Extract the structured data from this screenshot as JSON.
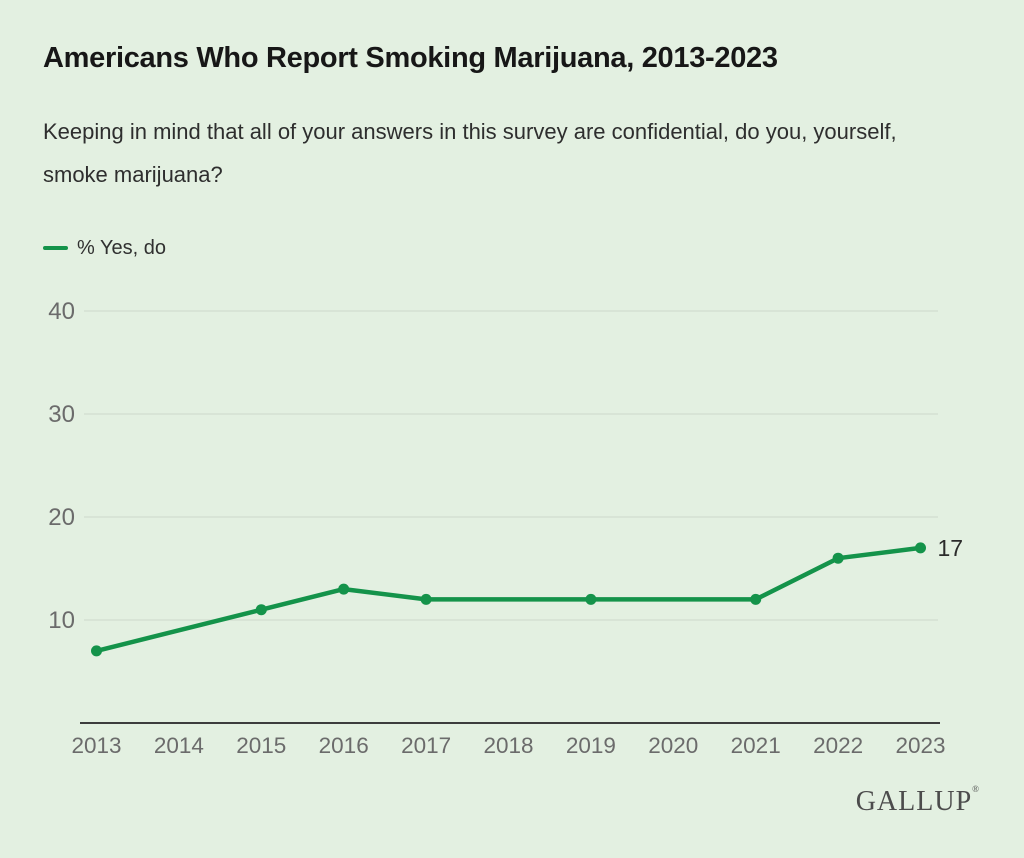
{
  "header": {
    "title": "Americans Who Report Smoking Marijuana, 2013-2023",
    "subtitle": "Keeping in mind that all of your answers in this survey are confidential, do you, yourself, smoke marijuana?"
  },
  "legend": {
    "series_label": "% Yes, do"
  },
  "footer": {
    "logo_text": "GALLUP",
    "registered_mark": "®"
  },
  "colors": {
    "background": "#e3f0e1",
    "line": "#14934a",
    "grid": "#d4dfd2",
    "axis": "#3d3d3d",
    "title_text": "#171717",
    "body_text": "#2e2e2e",
    "muted_text": "#6b6b6b",
    "end_label_text": "#2b2b2b"
  },
  "chart_data": {
    "type": "line",
    "title": "Americans Who Report Smoking Marijuana, 2013-2023",
    "question": "Keeping in mind that all of your answers in this survey are confidential, do you, yourself, smoke marijuana?",
    "xlabel": "",
    "ylabel": "% Yes, do",
    "categories": [
      2013,
      2014,
      2015,
      2016,
      2017,
      2018,
      2019,
      2020,
      2021,
      2022,
      2023
    ],
    "yticks": [
      10,
      20,
      30,
      40
    ],
    "ylim": [
      0,
      43
    ],
    "grid": true,
    "legend_position": "top-left",
    "series": [
      {
        "name": "% Yes, do",
        "points": [
          [
            2013,
            7
          ],
          [
            2015,
            11
          ],
          [
            2016,
            13
          ],
          [
            2017,
            12
          ],
          [
            2019,
            12
          ],
          [
            2021,
            12
          ],
          [
            2022,
            16
          ],
          [
            2023,
            17
          ]
        ]
      }
    ],
    "end_label": "17"
  }
}
